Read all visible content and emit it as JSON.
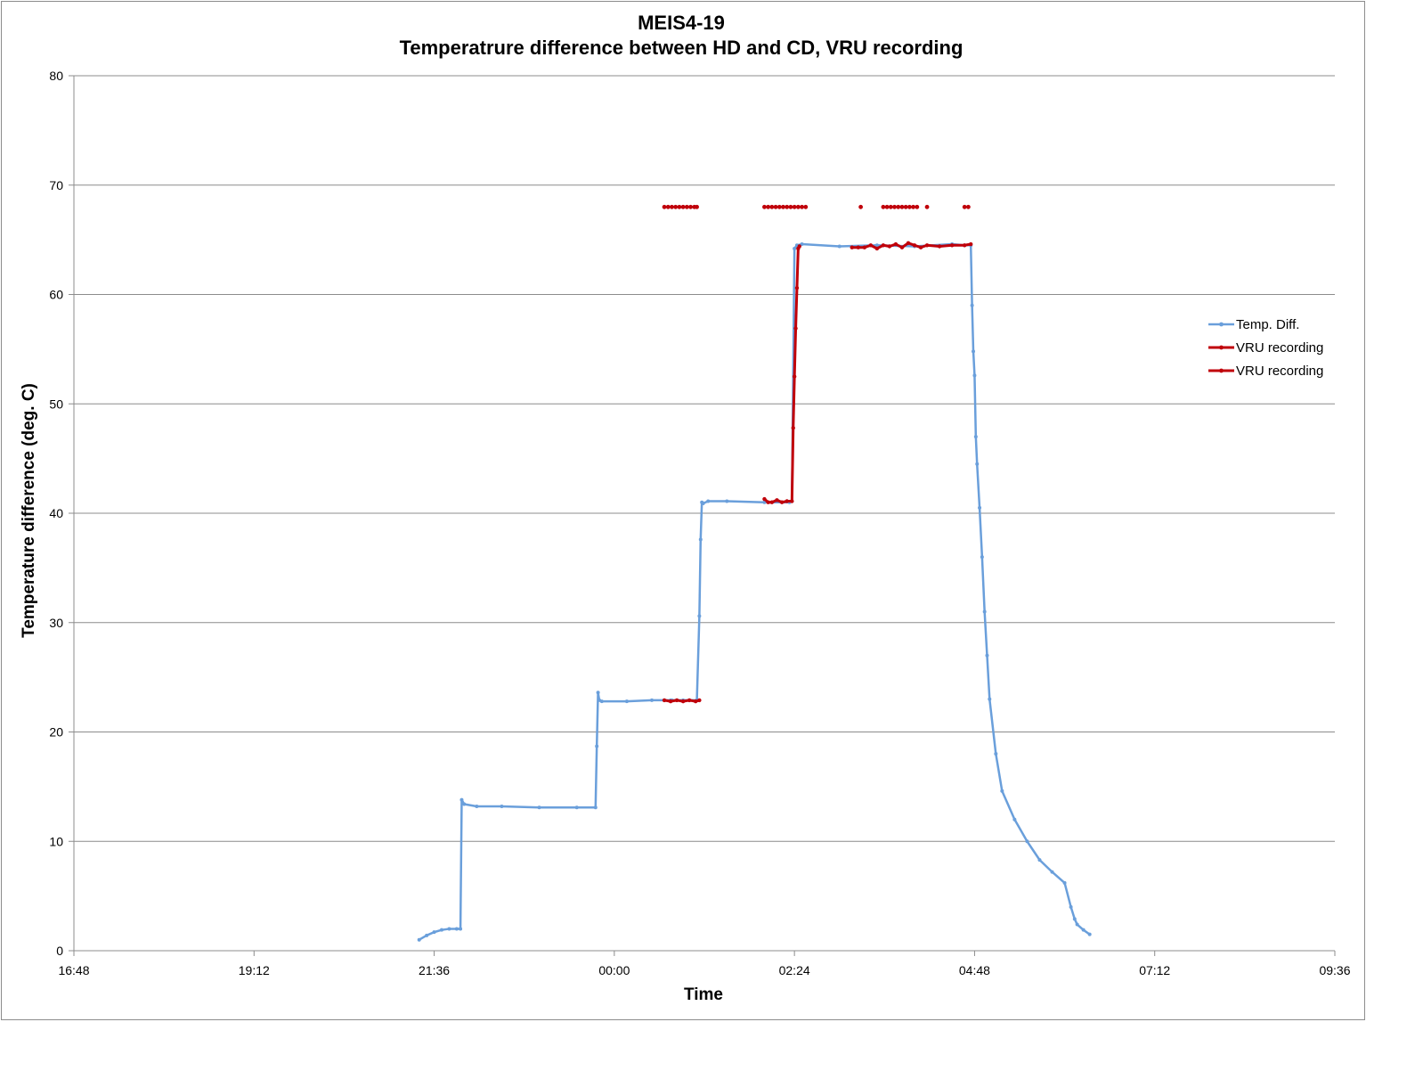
{
  "chart_data": {
    "type": "line",
    "title": "MEIS4-19",
    "subtitle": "Temperatrure difference between HD and CD, VRU recording",
    "xlabel": "Time",
    "ylabel": "Temperature difference (deg. C)",
    "ylim": [
      0,
      80
    ],
    "yticks": [
      0,
      10,
      20,
      30,
      40,
      50,
      60,
      70,
      80
    ],
    "xlim": [
      "16:48",
      "09:36"
    ],
    "xticks": [
      "16:48",
      "19:12",
      "21:36",
      "00:00",
      "02:24",
      "04:48",
      "07:12",
      "09:36"
    ],
    "grid": "horizontal",
    "legend_position": "right",
    "series": [
      {
        "name": "Temp. Diff.",
        "color": "#6a9fdb",
        "x": [
          "21:24",
          "21:30",
          "21:36",
          "21:42",
          "21:48",
          "21:54",
          "21:57",
          "21:58",
          "22:00",
          "22:10",
          "22:30",
          "23:00",
          "23:30",
          "23:45",
          "23:46",
          "23:47",
          "23:48",
          "23:50",
          "00:10",
          "00:30",
          "00:40",
          "00:45",
          "00:46",
          "00:50",
          "00:55",
          "01:00",
          "01:06",
          "01:08",
          "01:09",
          "01:10",
          "01:11",
          "01:15",
          "01:30",
          "02:00",
          "02:20",
          "02:22",
          "02:24",
          "02:26",
          "02:30",
          "03:00",
          "03:30",
          "04:00",
          "04:30",
          "04:40",
          "04:45",
          "04:46",
          "04:47",
          "04:48",
          "04:49",
          "04:50",
          "04:52",
          "04:54",
          "04:56",
          "04:58",
          "05:00",
          "05:05",
          "05:10",
          "05:20",
          "05:30",
          "05:40",
          "05:50",
          "06:00",
          "06:05",
          "06:08",
          "06:10",
          "06:15",
          "06:20"
        ],
        "y": [
          1.0,
          1.4,
          1.7,
          1.9,
          2.0,
          2.0,
          2.0,
          13.8,
          13.4,
          13.2,
          13.2,
          13.1,
          13.1,
          13.1,
          18.7,
          23.6,
          22.9,
          22.8,
          22.8,
          22.9,
          22.9,
          22.9,
          22.9,
          22.9,
          22.9,
          22.9,
          22.9,
          30.6,
          37.6,
          41.0,
          40.9,
          41.1,
          41.1,
          41.0,
          41.0,
          41.1,
          64.2,
          64.5,
          64.6,
          64.4,
          64.5,
          64.4,
          64.6,
          64.5,
          64.5,
          59.0,
          54.8,
          52.6,
          47.0,
          44.5,
          40.5,
          36.0,
          31.0,
          27.0,
          23.0,
          18.0,
          14.6,
          12.0,
          10.0,
          8.3,
          7.2,
          6.2,
          4.0,
          2.9,
          2.4,
          1.9,
          1.5
        ]
      },
      {
        "name": "VRU recording",
        "color": "#c0000a",
        "segments": [
          {
            "x": [
              "00:40",
              "00:45",
              "00:50",
              "00:55",
              "01:00",
              "01:05",
              "01:08"
            ],
            "y": [
              22.9,
              22.8,
              22.9,
              22.8,
              22.9,
              22.8,
              22.9
            ]
          },
          {
            "x": [
              "02:00",
              "02:03",
              "02:06",
              "02:10",
              "02:14",
              "02:18",
              "02:22",
              "02:23",
              "02:24",
              "02:25",
              "02:26",
              "02:27",
              "02:28"
            ],
            "y": [
              41.3,
              41.0,
              41.0,
              41.2,
              41.0,
              41.1,
              41.1,
              47.8,
              52.5,
              56.9,
              60.6,
              64.2,
              64.4
            ]
          },
          {
            "x": [
              "03:10",
              "03:15",
              "03:20",
              "03:25",
              "03:30",
              "03:35",
              "03:40",
              "03:45",
              "03:50",
              "03:55",
              "04:00",
              "04:05",
              "04:10",
              "04:20",
              "04:30",
              "04:40",
              "04:45"
            ],
            "y": [
              64.3,
              64.3,
              64.3,
              64.5,
              64.2,
              64.5,
              64.4,
              64.6,
              64.3,
              64.7,
              64.5,
              64.3,
              64.5,
              64.4,
              64.5,
              64.5,
              64.6
            ]
          }
        ]
      },
      {
        "name": "VRU recording",
        "color": "#c0000a",
        "y_value": 68,
        "segments": [
          {
            "x": [
              "00:40",
              "00:43",
              "00:46",
              "00:49",
              "00:52",
              "00:55",
              "00:58",
              "01:01",
              "01:04",
              "01:06"
            ]
          },
          {
            "x": [
              "02:00",
              "02:03",
              "02:06",
              "02:09",
              "02:12",
              "02:15",
              "02:18",
              "02:21",
              "02:24",
              "02:27",
              "02:30",
              "02:33"
            ]
          },
          {
            "x": [
              "03:17"
            ]
          },
          {
            "x": [
              "03:35",
              "03:38",
              "03:41",
              "03:44",
              "03:47",
              "03:50",
              "03:53",
              "03:56",
              "03:59",
              "04:02"
            ]
          },
          {
            "x": [
              "04:10"
            ]
          },
          {
            "x": [
              "04:40",
              "04:43"
            ]
          }
        ]
      }
    ]
  }
}
